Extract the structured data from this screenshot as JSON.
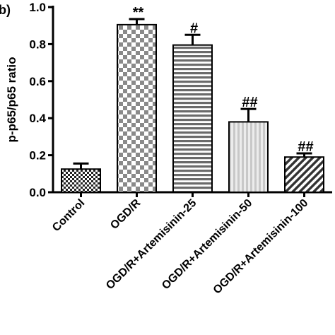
{
  "panel_label": "b)",
  "chart_data": {
    "type": "bar",
    "ylabel": "p-p65/p65 ratio",
    "xlabel": "",
    "ylim": [
      0,
      1.0
    ],
    "yticks": [
      "0.0",
      "0.2",
      "0.4",
      "0.6",
      "0.8",
      "1.0"
    ],
    "categories": [
      "Control",
      "OGD/R",
      "OGD/R+Artemisinin-25",
      "OGD/R+Artemisinin-50",
      "OGD/R+Artemisinin-100"
    ],
    "values": [
      0.125,
      0.905,
      0.795,
      0.38,
      0.19
    ],
    "errors": [
      0.03,
      0.03,
      0.055,
      0.07,
      0.02
    ],
    "annotations": [
      "",
      "**",
      "#",
      "##",
      "##"
    ],
    "patterns": [
      "small-checker",
      "large-checker",
      "horizontal-lines",
      "vertical-lines",
      "diagonal-lines"
    ],
    "colors": {
      "axis": "#000000",
      "bar_dark": "#333333",
      "bar_mid": "#6b6b6b",
      "bar_light": "#cfcfcf"
    },
    "grid": false,
    "legend": "none"
  }
}
